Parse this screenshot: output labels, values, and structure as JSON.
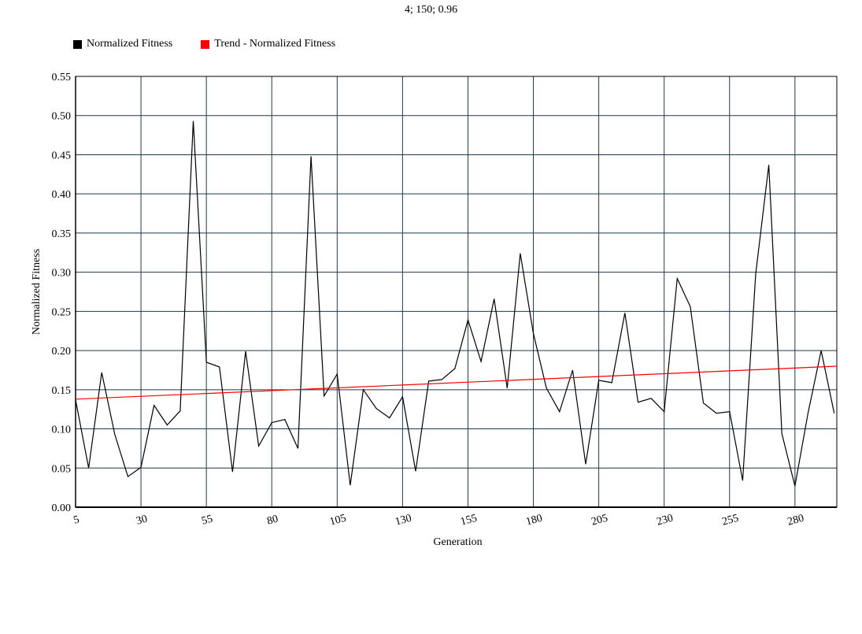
{
  "chart_data": {
    "type": "line",
    "title": "4; 150; 0.96",
    "xlabel": "Generation",
    "ylabel": "Normalized Fitness",
    "xlim": [
      5,
      296
    ],
    "ylim": [
      0,
      0.55
    ],
    "x_ticks": [
      5,
      30,
      55,
      80,
      105,
      130,
      155,
      180,
      205,
      230,
      255,
      280
    ],
    "y_ticks": [
      "0.00",
      "0.05",
      "0.10",
      "0.15",
      "0.20",
      "0.25",
      "0.30",
      "0.35",
      "0.40",
      "0.45",
      "0.50",
      "0.55"
    ],
    "grid": true,
    "legend_position": "top-left",
    "series": [
      {
        "name": "Normalized Fitness",
        "color": "#000000",
        "x": [
          5,
          10,
          15,
          20,
          25,
          30,
          35,
          40,
          45,
          50,
          55,
          60,
          65,
          70,
          75,
          80,
          85,
          90,
          95,
          100,
          105,
          110,
          115,
          120,
          125,
          130,
          135,
          140,
          145,
          150,
          155,
          160,
          165,
          170,
          175,
          180,
          185,
          190,
          195,
          200,
          205,
          210,
          215,
          220,
          225,
          230,
          235,
          240,
          245,
          250,
          255,
          260,
          265,
          270,
          275,
          280,
          285,
          290,
          295
        ],
        "values": [
          0.137,
          0.05,
          0.172,
          0.093,
          0.039,
          0.051,
          0.13,
          0.105,
          0.123,
          0.493,
          0.185,
          0.179,
          0.045,
          0.199,
          0.078,
          0.108,
          0.112,
          0.075,
          0.448,
          0.142,
          0.17,
          0.028,
          0.15,
          0.126,
          0.114,
          0.141,
          0.046,
          0.161,
          0.163,
          0.177,
          0.239,
          0.186,
          0.266,
          0.152,
          0.324,
          0.222,
          0.152,
          0.122,
          0.175,
          0.055,
          0.162,
          0.159,
          0.248,
          0.134,
          0.139,
          0.122,
          0.292,
          0.256,
          0.133,
          0.12,
          0.122,
          0.034,
          0.298,
          0.437,
          0.094,
          0.027,
          0.12,
          0.2,
          0.12
        ]
      },
      {
        "name": "Trend - Normalized Fitness",
        "color": "#ff0000",
        "x": [
          5,
          296
        ],
        "values": [
          0.138,
          0.18
        ]
      }
    ]
  }
}
